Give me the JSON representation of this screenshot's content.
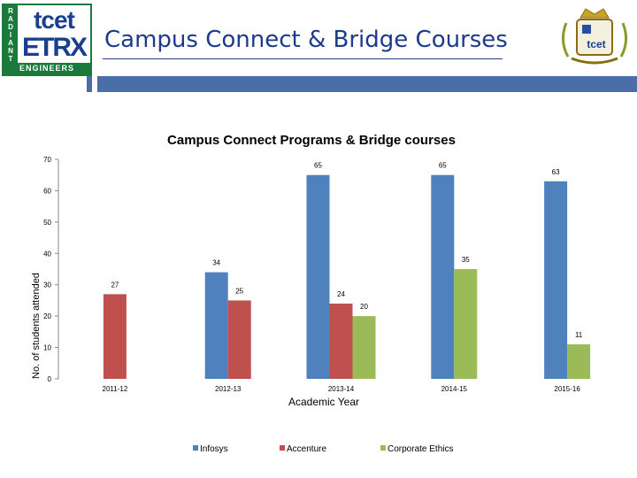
{
  "header": {
    "title": "Campus Connect & Bridge Courses",
    "logo_left": {
      "side_letters": [
        "R",
        "A",
        "D",
        "I",
        "A",
        "N",
        "T"
      ],
      "top_text": "tcet",
      "mid_text": "ETRX",
      "bottom_text": "ENGINEERS"
    },
    "logo_right": {
      "text": "tcet"
    },
    "colors": {
      "title": "#1e3a8a",
      "bar": "#4a6fa8",
      "logo_green": "#1a7a3c",
      "logo_blue": "#1a3f8f"
    }
  },
  "chart_data": {
    "type": "bar",
    "title": "Campus Connect  Programs & Bridge courses",
    "xlabel": "Academic Year",
    "ylabel": "No. of students attended",
    "categories": [
      "2011-12",
      "2012-13",
      "2013-14",
      "2014-15",
      "2015-16"
    ],
    "series": [
      {
        "name": "Infosys",
        "color": "#4f81bd",
        "values": [
          null,
          34,
          65,
          65,
          63
        ]
      },
      {
        "name": "Accenture",
        "color": "#c0504d",
        "values": [
          27,
          25,
          24,
          null,
          null
        ]
      },
      {
        "name": "Corporate Ethics",
        "color": "#9bbb59",
        "values": [
          null,
          null,
          20,
          35,
          11
        ]
      }
    ],
    "ylim": [
      0,
      70
    ],
    "yticks": [
      0,
      10,
      20,
      30,
      40,
      50,
      60,
      70
    ],
    "grid": false,
    "legend": "bottom"
  }
}
